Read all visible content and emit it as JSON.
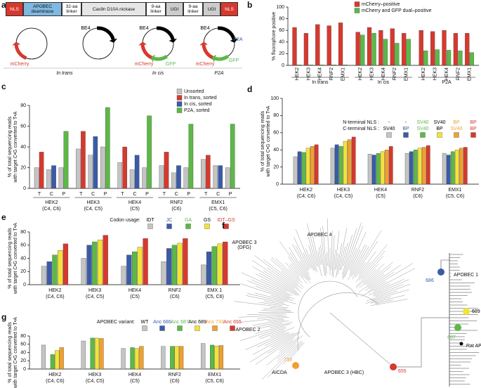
{
  "panel_a": {
    "label": "a",
    "construct": [
      "NLS",
      "APOBEC deaminase",
      "32-aa linker",
      "Cas9n D10A nickase",
      "9-aa linker",
      "UGI",
      "9-aa linker",
      "UGI",
      "NLS"
    ],
    "plasmids": [
      {
        "labels": [
          {
            "text": "mCherry",
            "color": "#d7392e"
          }
        ]
      },
      {
        "labels": [
          {
            "text": "BE4",
            "color": "#000000"
          }
        ]
      },
      {
        "labels": [
          {
            "text": "BE4",
            "color": "#000000"
          },
          {
            "text": "mCherry",
            "color": "#d7392e"
          },
          {
            "text": "GFP",
            "color": "#5cb847"
          }
        ]
      },
      {
        "labels": [
          {
            "text": "BE4",
            "color": "#000000"
          },
          {
            "text": "P2A",
            "color": "#3a5ba8"
          },
          {
            "text": "mCherry",
            "color": "#d7392e"
          },
          {
            "text": "GFP",
            "color": "#5cb847"
          }
        ]
      }
    ],
    "captions": [
      "In trans",
      "In cis",
      "P2A"
    ]
  },
  "chart_data": [
    {
      "type": "bar",
      "panel": "b",
      "ylabel": [
        "% fluorophore positive"
      ],
      "ylim": [
        0,
        100
      ],
      "yticks": [
        0,
        20,
        40,
        60,
        80,
        100
      ],
      "legend": "upper right",
      "groups": [
        {
          "label": "In trans",
          "categories": [
            "HEK2",
            "HEK3",
            "HEK4",
            "RNF2",
            "EMX1"
          ]
        },
        {
          "label": "In cis",
          "categories": [
            "HEK2",
            "HEK3",
            "HEK4",
            "RNF2",
            "EMX1"
          ]
        },
        {
          "label": "P2A",
          "categories": [
            "HEK2",
            "HEK3",
            "HEK4",
            "RNF2",
            "EMX1"
          ]
        }
      ],
      "series": [
        {
          "name": "mCherry–positive",
          "color": "#d7392e",
          "values": [
            65,
            55,
            70,
            68,
            73,
            57,
            65,
            60,
            63,
            55,
            60,
            58,
            60,
            55,
            55
          ]
        },
        {
          "name": "mCherry and GFP dual–positive",
          "color": "#5cb847",
          "values": [
            1,
            1,
            1,
            1,
            1,
            52,
            55,
            45,
            38,
            45,
            25,
            27,
            26,
            25,
            22
          ]
        }
      ]
    },
    {
      "type": "bar",
      "panel": "c",
      "ylabel": [
        "% of total sequencing reads",
        "with target C•G converted to T•A"
      ],
      "ylim": [
        0,
        80
      ],
      "yticks": [
        0,
        20,
        40,
        60,
        80
      ],
      "legend": "upper right",
      "groups": [
        {
          "label": "HEK2",
          "note": "(C4, C6)",
          "categories": [
            "T",
            "C",
            "P"
          ]
        },
        {
          "label": "HEK3",
          "note": "(C4, C5)",
          "categories": [
            "T",
            "C",
            "P"
          ]
        },
        {
          "label": "HEK4",
          "note": "(C5)",
          "categories": [
            "T",
            "C",
            "P"
          ]
        },
        {
          "label": "RNF2",
          "note": "(C6)",
          "categories": [
            "T",
            "C",
            "P"
          ]
        },
        {
          "label": "EMX1",
          "note": "(C5, C6)",
          "categories": [
            "T",
            "C",
            "P"
          ]
        }
      ],
      "series": [
        {
          "name": "Unsorted",
          "color": "#c4c4c4",
          "values": [
            20,
            18,
            20,
            38,
            32,
            40,
            25,
            18,
            20,
            22,
            15,
            20,
            28,
            22,
            20
          ]
        },
        {
          "name": "In trans, sorted",
          "color": "#d7392e",
          "values": [
            35,
            null,
            null,
            55,
            null,
            null,
            40,
            null,
            null,
            35,
            null,
            null,
            32,
            null,
            null
          ]
        },
        {
          "name": "In cis, sorted",
          "color": "#3a5ba8",
          "values": [
            null,
            22,
            null,
            null,
            50,
            null,
            null,
            32,
            null,
            null,
            22,
            null,
            null,
            22,
            null
          ]
        },
        {
          "name": "P2A, sorted",
          "color": "#5cb847",
          "values": [
            null,
            null,
            55,
            null,
            null,
            78,
            null,
            null,
            70,
            null,
            null,
            62,
            null,
            null,
            62
          ]
        }
      ]
    },
    {
      "type": "bar",
      "panel": "d",
      "ylabel": [
        "% of total sequencing reads",
        "with target C•G converted to T•A"
      ],
      "ylim": [
        0,
        100
      ],
      "yticks": [
        0,
        20,
        40,
        60,
        80,
        100
      ],
      "legend": "top",
      "legend_title": [
        "N-terminal NLS :",
        "C-terminal NLS :"
      ],
      "categories": [
        "HEK2",
        "HEK3",
        "HEK4",
        "RNF2",
        "EMX1"
      ],
      "notes": [
        "(C4, C6)",
        "(C4, C5)",
        "(C5)",
        "(C6)",
        "(C5, C6)"
      ],
      "series": [
        {
          "n_terminal": "-",
          "c_terminal": "SV40",
          "n_color": "#000000",
          "c_color": "#000000",
          "color": "#c4c4c4",
          "values": [
            32,
            42,
            35,
            36,
            36
          ]
        },
        {
          "n_terminal": "-",
          "c_terminal": "BP",
          "n_color": "#000000",
          "c_color": "#3a5ba8",
          "color": "#3a5ba8",
          "values": [
            38,
            46,
            34,
            38,
            34
          ]
        },
        {
          "n_terminal": "SV40",
          "c_terminal": "SV40",
          "n_color": "#5cb847",
          "c_color": "#5cb847",
          "color": "#5cb847",
          "values": [
            37,
            44,
            36,
            40,
            38
          ]
        },
        {
          "n_terminal": "SV40",
          "c_terminal": "BP",
          "n_color": "#000000",
          "c_color": "#000000",
          "color": "#f2e33a",
          "values": [
            42,
            50,
            38,
            42,
            40
          ]
        },
        {
          "n_terminal": "BP",
          "c_terminal": "SV40",
          "n_color": "#f0a030",
          "c_color": "#f0a030",
          "color": "#f0a030",
          "values": [
            44,
            52,
            40,
            43,
            42
          ]
        },
        {
          "n_terminal": "BP",
          "c_terminal": "BP",
          "n_color": "#d7392e",
          "c_color": "#d7392e",
          "color": "#d7392e",
          "values": [
            46,
            55,
            44,
            45,
            43
          ]
        }
      ]
    },
    {
      "type": "bar",
      "panel": "e",
      "ylabel": [
        "% of total sequencing reads",
        "with target C•G converted to T•A"
      ],
      "ylim": [
        0,
        80
      ],
      "yticks": [
        0,
        20,
        40,
        60,
        80
      ],
      "legend": "top",
      "legend_title": [
        "Codon usage:"
      ],
      "categories": [
        "HEK2",
        "HEK3",
        "HEK4",
        "RNF2",
        "EMX 1"
      ],
      "notes": [
        "(C4, C6)",
        "(C4, C5)",
        "(C5)",
        "(C6)",
        "(C5, C6)"
      ],
      "series": [
        {
          "name": "IDT",
          "color": "#c4c4c4",
          "text_color": "#000000",
          "values": [
            28,
            40,
            28,
            35,
            30
          ]
        },
        {
          "name": "JC",
          "color": "#3a5ba8",
          "text_color": "#3a5ba8",
          "values": [
            35,
            60,
            45,
            55,
            50
          ]
        },
        {
          "name": "GA",
          "color": "#5cb847",
          "text_color": "#5cb847",
          "values": [
            45,
            65,
            50,
            60,
            58
          ]
        },
        {
          "name": "GS",
          "color": "#f2e33a",
          "text_color": "#000000",
          "values": [
            52,
            68,
            57,
            63,
            62
          ]
        },
        {
          "name": "IDT–GS",
          "color": "#d7392e",
          "text_color": "#d7392e",
          "values": [
            62,
            75,
            70,
            70,
            65
          ]
        }
      ]
    },
    {
      "type": "bar",
      "panel": "g",
      "ylabel": [
        "% of total sequencing reads",
        "with target C•G converted to T•A"
      ],
      "ylim": [
        0,
        80
      ],
      "yticks": [
        0,
        20,
        40,
        60,
        80
      ],
      "legend": "top",
      "legend_title": [
        "APOBEC variant:"
      ],
      "categories": [
        "HEK2",
        "HEK3",
        "HEK4",
        "RNF2",
        "EMX1"
      ],
      "notes": [
        "(C4, C6)",
        "(C4, C5)",
        "(C5)",
        "(C6)",
        "(C5, C6)"
      ],
      "series": [
        {
          "name": "WT",
          "color": "#c4c4c4",
          "text_color": "#000000",
          "values": [
            58,
            68,
            50,
            55,
            62
          ]
        },
        {
          "name": "Anc 686",
          "color": "#3a5ba8",
          "text_color": "#3a5ba8",
          "values": [
            0.5,
            0.5,
            0.5,
            0.5,
            0.5
          ]
        },
        {
          "name": "Anc 687",
          "color": "#5cb847",
          "text_color": "#5cb847",
          "values": [
            35,
            75,
            52,
            55,
            58
          ]
        },
        {
          "name": "Anc 689",
          "color": "#f2e33a",
          "text_color": "#000000",
          "values": [
            45,
            75,
            50,
            55,
            56
          ]
        },
        {
          "name": "Anc 733",
          "color": "#f0a030",
          "text_color": "#f0a030",
          "values": [
            52,
            74,
            55,
            55,
            57
          ]
        },
        {
          "name": "Anc 655",
          "color": "#d7392e",
          "text_color": "#d7392e",
          "values": [
            0.5,
            0.5,
            0.5,
            0.5,
            0.5
          ]
        }
      ]
    }
  ],
  "panel_f": {
    "label": "f",
    "clades": [
      "APOBEC 3 (DFG)",
      "APOBEC 4",
      "APOBEC 1",
      "APOBEC 2",
      "AICDA",
      "APOBEC 3 (HBC)"
    ],
    "nodes": [
      {
        "label": "686",
        "color": "#3a5ba8",
        "label_color": "#3a5ba8"
      },
      {
        "label": "689",
        "color": "#f2e33a",
        "label_color": "#000000"
      },
      {
        "label": "687",
        "color": "#5cb847",
        "label_color": "#5cb847"
      },
      {
        "label": "Rat APOBEC 1",
        "color": "#000000",
        "label_color": "#000000"
      },
      {
        "label": "655",
        "color": "#d7392e",
        "label_color": "#d7392e"
      },
      {
        "label": "733",
        "color": "#f0a030",
        "label_color": "#f0a030"
      }
    ]
  }
}
